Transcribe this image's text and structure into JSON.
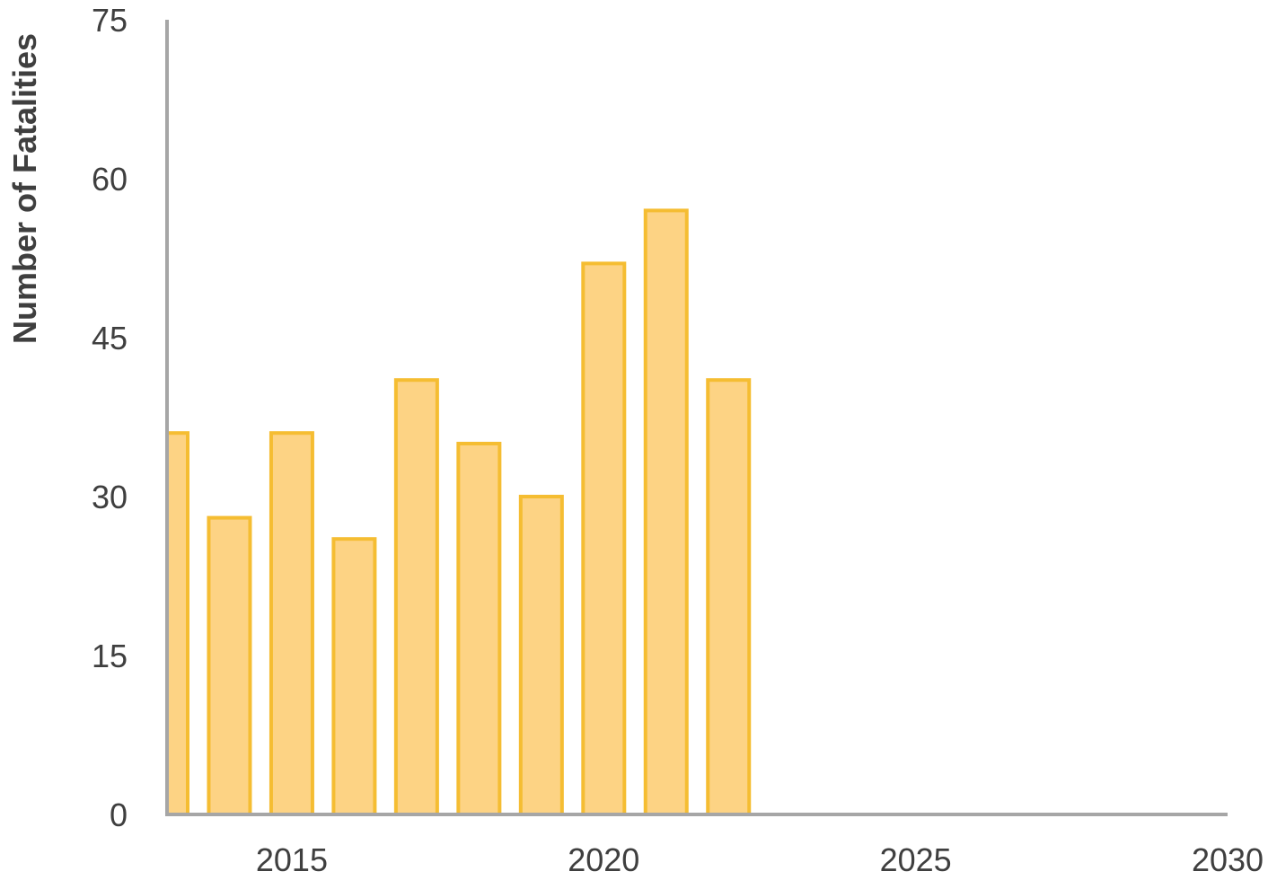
{
  "chart_data": {
    "type": "bar",
    "title": "",
    "xlabel": "",
    "ylabel": "Number of Fatalities",
    "x": [
      2013,
      2014,
      2015,
      2016,
      2017,
      2018,
      2019,
      2020,
      2021,
      2022
    ],
    "values": [
      36,
      28,
      36,
      26,
      41,
      35,
      30,
      52,
      57,
      41
    ],
    "xlim": [
      2013,
      2030
    ],
    "ylim": [
      0,
      75
    ],
    "x_ticks": [
      "2015",
      "2020",
      "2025",
      "2030"
    ],
    "y_ticks": [
      "0",
      "15",
      "30",
      "45",
      "60",
      "75"
    ],
    "grid": false,
    "colors": {
      "bar_fill": "#fdd384",
      "bar_stroke": "#f5bd32",
      "axis": "#a6a6a6",
      "text": "#3f3f3f"
    }
  }
}
